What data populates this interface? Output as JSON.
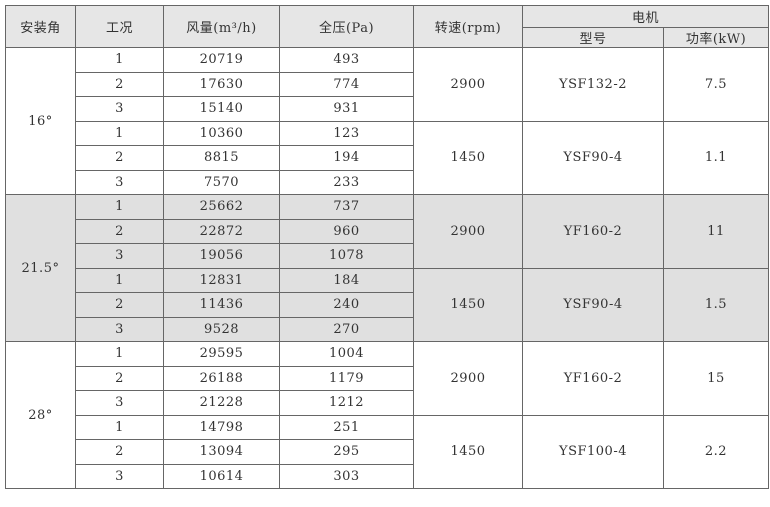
{
  "headers": {
    "angle": "安装角",
    "condition": "工况",
    "flow": "风量(m³/h)",
    "pressure": "全压(Pa)",
    "speed": "转速(rpm)",
    "motor": "电机",
    "model": "型号",
    "power": "功率(kW)"
  },
  "groups": [
    {
      "angle": "16°",
      "shaded": false,
      "sub": [
        {
          "speed": "2900",
          "model": "YSF132-2",
          "power": "7.5",
          "rows": [
            [
              "1",
              "20719",
              "493"
            ],
            [
              "2",
              "17630",
              "774"
            ],
            [
              "3",
              "15140",
              "931"
            ]
          ]
        },
        {
          "speed": "1450",
          "model": "YSF90-4",
          "power": "1.1",
          "rows": [
            [
              "1",
              "10360",
              "123"
            ],
            [
              "2",
              "8815",
              "194"
            ],
            [
              "3",
              "7570",
              "233"
            ]
          ]
        }
      ]
    },
    {
      "angle": "21.5°",
      "shaded": true,
      "sub": [
        {
          "speed": "2900",
          "model": "YF160-2",
          "power": "11",
          "rows": [
            [
              "1",
              "25662",
              "737"
            ],
            [
              "2",
              "22872",
              "960"
            ],
            [
              "3",
              "19056",
              "1078"
            ]
          ]
        },
        {
          "speed": "1450",
          "model": "YSF90-4",
          "power": "1.5",
          "rows": [
            [
              "1",
              "12831",
              "184"
            ],
            [
              "2",
              "11436",
              "240"
            ],
            [
              "3",
              "9528",
              "270"
            ]
          ]
        }
      ]
    },
    {
      "angle": "28°",
      "shaded": false,
      "sub": [
        {
          "speed": "2900",
          "model": "YF160-2",
          "power": "15",
          "rows": [
            [
              "1",
              "29595",
              "1004"
            ],
            [
              "2",
              "26188",
              "1179"
            ],
            [
              "3",
              "21228",
              "1212"
            ]
          ]
        },
        {
          "speed": "1450",
          "model": "YSF100-4",
          "power": "2.2",
          "rows": [
            [
              "1",
              "14798",
              "251"
            ],
            [
              "2",
              "13094",
              "295"
            ],
            [
              "3",
              "10614",
              "303"
            ]
          ]
        }
      ]
    }
  ],
  "colors": {
    "header_bg": "#e6e6e6",
    "shaded_bg": "#e0e0e0",
    "border": "#666666"
  }
}
